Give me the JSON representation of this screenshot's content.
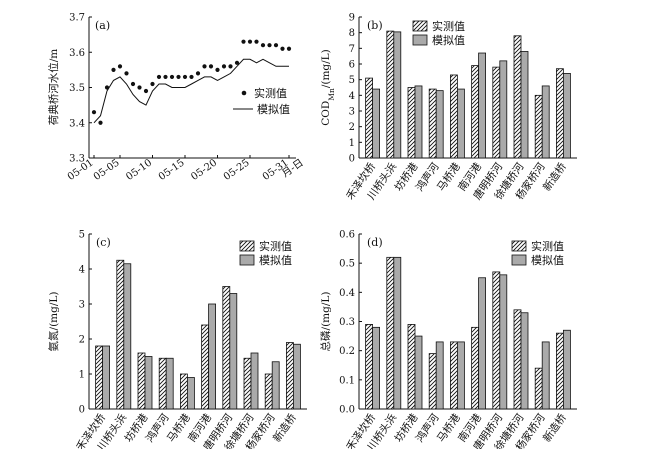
{
  "figure": {
    "background": "#ffffff",
    "series_colors": {
      "measured": "hatch-white",
      "simulated": "#aaaaaa"
    }
  },
  "chart_data": [
    {
      "panel": "(a)",
      "type": "line",
      "ylabel": "荷典桥河水位/m",
      "ylim": [
        3.3,
        3.7
      ],
      "yticks": [
        3.3,
        3.4,
        3.5,
        3.6,
        3.7
      ],
      "x_days": [
        1,
        5,
        10,
        15,
        20,
        25,
        31
      ],
      "x_tick_labels": [
        "05-01",
        "05-05",
        "05-10",
        "05-15",
        "05-20",
        "05-25",
        "05-31"
      ],
      "x_end_label": "月-日",
      "series": [
        {
          "name": "实测值",
          "style": "points",
          "x": [
            1,
            2,
            3,
            4,
            5,
            6,
            7,
            8,
            9,
            10,
            11,
            12,
            13,
            14,
            15,
            16,
            17,
            18,
            19,
            20,
            21,
            22,
            23,
            24,
            25,
            26,
            27,
            28,
            29,
            30,
            31
          ],
          "y": [
            3.43,
            3.4,
            3.5,
            3.55,
            3.56,
            3.54,
            3.51,
            3.5,
            3.49,
            3.51,
            3.53,
            3.53,
            3.53,
            3.53,
            3.53,
            3.53,
            3.54,
            3.56,
            3.56,
            3.55,
            3.56,
            3.56,
            3.57,
            3.63,
            3.63,
            3.63,
            3.62,
            3.62,
            3.62,
            3.61,
            3.61
          ]
        },
        {
          "name": "模拟值",
          "style": "line",
          "x": [
            1,
            2,
            3,
            4,
            5,
            6,
            7,
            8,
            9,
            10,
            11,
            12,
            13,
            14,
            15,
            16,
            17,
            18,
            19,
            20,
            21,
            22,
            23,
            24,
            25,
            26,
            27,
            28,
            29,
            30,
            31
          ],
          "y": [
            3.4,
            3.42,
            3.49,
            3.52,
            3.53,
            3.51,
            3.48,
            3.46,
            3.45,
            3.49,
            3.51,
            3.51,
            3.5,
            3.5,
            3.5,
            3.51,
            3.52,
            3.53,
            3.53,
            3.52,
            3.53,
            3.54,
            3.56,
            3.58,
            3.58,
            3.57,
            3.58,
            3.57,
            3.56,
            3.56,
            3.56
          ]
        }
      ]
    },
    {
      "panel": "(b)",
      "type": "bar",
      "ylabel_main": "COD",
      "ylabel_sub": "Mn",
      "ylabel_unit": "/(mg/L)",
      "ylim": [
        0,
        9
      ],
      "yticks": [
        0,
        1,
        2,
        3,
        4,
        5,
        6,
        7,
        8,
        9
      ],
      "categories": [
        "禾泽坎桥",
        "川桥头浜",
        "坊桥港",
        "鸿声河",
        "马桥港",
        "南河港",
        "唐明桥河",
        "徐塘桥河",
        "杨家桥河",
        "新造桥"
      ],
      "series": [
        {
          "name": "实测值",
          "values": [
            5.1,
            8.1,
            4.5,
            4.4,
            5.3,
            5.9,
            5.8,
            7.8,
            4.0,
            5.7
          ]
        },
        {
          "name": "模拟值",
          "values": [
            4.4,
            8.05,
            4.6,
            4.3,
            4.4,
            6.7,
            6.2,
            6.8,
            4.6,
            5.4
          ]
        }
      ]
    },
    {
      "panel": "(c)",
      "type": "bar",
      "ylabel": "氨氮/(mg/L)",
      "ylim": [
        0,
        5
      ],
      "yticks": [
        0,
        1,
        2,
        3,
        4,
        5
      ],
      "categories": [
        "禾泽坎桥",
        "川桥头浜",
        "坊桥港",
        "鸿声河",
        "马桥港",
        "南河港",
        "唐明桥河",
        "徐塘桥河",
        "杨家桥河",
        "新造桥"
      ],
      "series": [
        {
          "name": "实测值",
          "values": [
            1.8,
            4.25,
            1.6,
            1.45,
            1.0,
            2.4,
            3.5,
            1.45,
            1.0,
            1.9
          ]
        },
        {
          "name": "模拟值",
          "values": [
            1.8,
            4.15,
            1.5,
            1.45,
            0.9,
            3.0,
            3.3,
            1.6,
            1.35,
            1.85
          ]
        }
      ]
    },
    {
      "panel": "(d)",
      "type": "bar",
      "ylabel": "总磷/(mg/L)",
      "ylim": [
        0,
        0.6
      ],
      "yticks": [
        0.0,
        0.1,
        0.2,
        0.3,
        0.4,
        0.5,
        0.6
      ],
      "categories": [
        "禾泽坎桥",
        "川桥头浜",
        "坊桥港",
        "鸿声河",
        "马桥港",
        "南河港",
        "唐明桥河",
        "徐塘桥河",
        "杨家桥河",
        "新造桥"
      ],
      "series": [
        {
          "name": "实测值",
          "values": [
            0.29,
            0.52,
            0.29,
            0.19,
            0.23,
            0.28,
            0.47,
            0.34,
            0.14,
            0.26
          ]
        },
        {
          "name": "模拟值",
          "values": [
            0.28,
            0.52,
            0.25,
            0.23,
            0.23,
            0.45,
            0.46,
            0.33,
            0.23,
            0.27
          ]
        }
      ]
    }
  ]
}
